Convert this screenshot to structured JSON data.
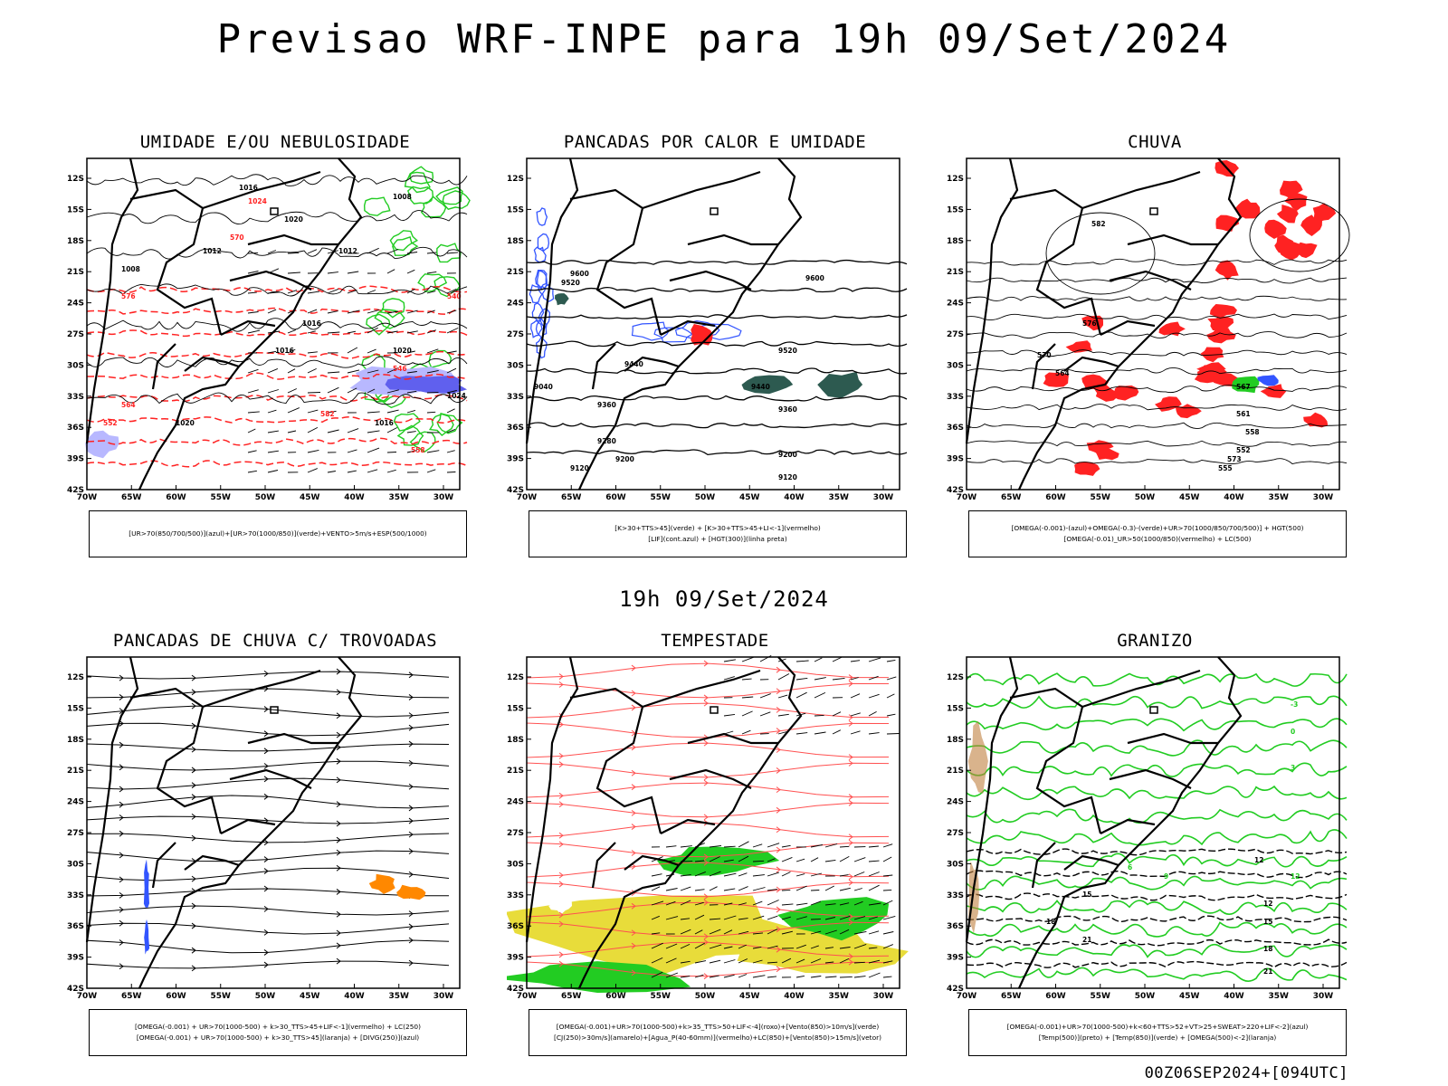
{
  "header": {
    "title": "Previsao WRF-INPE  para 19h 09/Set/2024"
  },
  "mid_date": "19h 09/Set/2024",
  "footer": {
    "run": "00Z06SEP2024+[094UTC]"
  },
  "colors": {
    "blue": "#3355ff",
    "green": "#22cc22",
    "red": "#ff2222",
    "orange": "#ff8800",
    "yellow": "#e8dc3a",
    "darkgreen": "#2d5a50",
    "navy": "#6060ee"
  },
  "chart_data": [
    {
      "id": "umidade",
      "type": "map",
      "title": "UMIDADE E/OU NEBULOSIDADE",
      "lat_labels": [
        "12S",
        "15S",
        "18S",
        "21S",
        "24S",
        "27S",
        "30S",
        "33S",
        "36S",
        "39S",
        "42S"
      ],
      "lon_labels": [
        "70W",
        "65W",
        "60W",
        "55W",
        "50W",
        "45W",
        "40W",
        "35W",
        "30W"
      ],
      "contour_labels": [
        "1016",
        "1020",
        "1012",
        "1008",
        "1016",
        "1008",
        "1012",
        "1016",
        "1020",
        "1024",
        "1016",
        "1020",
        "1024",
        "570",
        "576",
        "582",
        "552",
        "546",
        "540",
        "558",
        "564"
      ],
      "legend": [
        "[UR>70(850/700/500)](azul)+[UR>70(1000/850)](verde)+VENTO>5m/s+ESP(500/1000)"
      ]
    },
    {
      "id": "pancadas_calor",
      "type": "map",
      "title": "PANCADAS POR CALOR E UMIDADE",
      "lat_labels": [
        "12S",
        "15S",
        "18S",
        "21S",
        "24S",
        "27S",
        "30S",
        "33S",
        "36S",
        "39S",
        "42S"
      ],
      "lon_labels": [
        "70W",
        "65W",
        "60W",
        "55W",
        "50W",
        "45W",
        "40W",
        "35W",
        "30W"
      ],
      "contour_labels": [
        "9600",
        "9520",
        "9440",
        "9360",
        "9280",
        "9200",
        "9120",
        "9040",
        "9600",
        "9520",
        "9440",
        "9360",
        "9200",
        "9120"
      ],
      "legend": [
        "[K>30+TTS>45](verde) + [K>30+TTS>45+LI<-1](vermelho)",
        "[LIF](cont.azul) + [HGT(300)](linha preta)"
      ]
    },
    {
      "id": "chuva",
      "type": "map",
      "title": "CHUVA",
      "lat_labels": [
        "12S",
        "15S",
        "18S",
        "21S",
        "24S",
        "27S",
        "30S",
        "33S",
        "36S",
        "39S",
        "42S"
      ],
      "lon_labels": [
        "70W",
        "65W",
        "60W",
        "55W",
        "50W",
        "45W",
        "40W",
        "35W",
        "30W"
      ],
      "contour_labels": [
        "582",
        "576",
        "570",
        "564",
        "558",
        "552",
        "573",
        "567",
        "561",
        "555"
      ],
      "legend": [
        "[OMEGA(-0.001)-(azul)+OMEGA(-0.3)-(verde)+UR>70(1000/850/700/500)] + HGT(500)",
        "[OMEGA(-0.01)_UR>50(1000/850)(vermelho) + LC(500)"
      ]
    },
    {
      "id": "pancadas_trovoadas",
      "type": "map",
      "title": "PANCADAS DE CHUVA C/ TROVOADAS",
      "lat_labels": [
        "12S",
        "15S",
        "18S",
        "21S",
        "24S",
        "27S",
        "30S",
        "33S",
        "36S",
        "39S",
        "42S"
      ],
      "lon_labels": [
        "70W",
        "65W",
        "60W",
        "55W",
        "50W",
        "45W",
        "40W",
        "35W",
        "30W"
      ],
      "contour_labels": [],
      "legend": [
        "[OMEGA(-0.001) + UR>70(1000-500) + k>30_TTS>45+LIF<-1](vermelho) + LC(250)",
        "[OMEGA(-0.001) + UR>70(1000-500) + k>30_TTS>45](laranja) + [DIVG(250)](azul)"
      ]
    },
    {
      "id": "tempestade",
      "type": "map",
      "title": "TEMPESTADE",
      "lat_labels": [
        "12S",
        "15S",
        "18S",
        "21S",
        "24S",
        "27S",
        "30S",
        "33S",
        "36S",
        "39S",
        "42S"
      ],
      "lon_labels": [
        "70W",
        "65W",
        "60W",
        "55W",
        "50W",
        "45W",
        "40W",
        "35W",
        "30W"
      ],
      "contour_labels": [],
      "legend": [
        "[OMEGA(-0.001)+UR>70(1000-500)+k>35_TTS>50+LIF<-4](roxo)+[Vento(850)>10m/s](verde)",
        "[CJ(250)>30m/s](amarelo)+[Agua_P(40-60mm)](vermelho)+LC(850)+[Vento(850)>15m/s](vetor)"
      ]
    },
    {
      "id": "granizo",
      "type": "map",
      "title": "GRANIZO",
      "lat_labels": [
        "12S",
        "15S",
        "18S",
        "21S",
        "24S",
        "27S",
        "30S",
        "33S",
        "36S",
        "39S",
        "42S"
      ],
      "lon_labels": [
        "70W",
        "65W",
        "60W",
        "55W",
        "50W",
        "45W",
        "40W",
        "35W",
        "30W"
      ],
      "contour_labels": [
        "12",
        "15",
        "18",
        "21",
        "24",
        "12",
        "15",
        "18",
        "21",
        "-3",
        "0",
        "3",
        "6",
        "9",
        "12"
      ],
      "legend": [
        "[OMEGA(-0.001)+UR>70(1000-500)+k<60+TTS>52+VT>25+SWEAT>220+LIF<-2](azul)",
        "[Temp(500)](preto) + [Temp(850)](verde) + [OMEGA(500)<-2](laranja)"
      ]
    }
  ]
}
